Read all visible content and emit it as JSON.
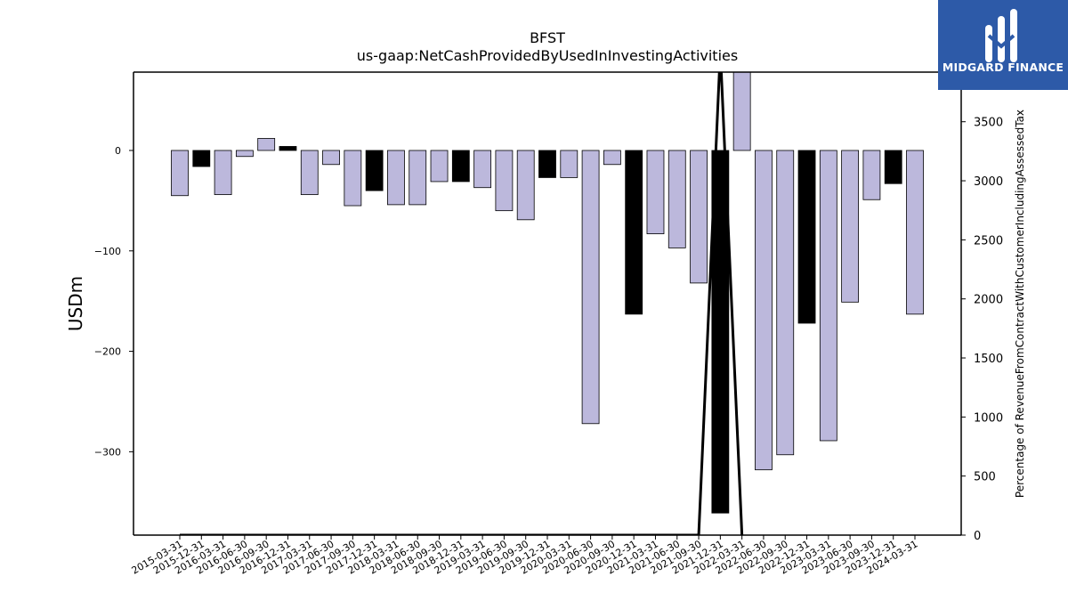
{
  "brand": {
    "name": "MIDGARD FINANCE",
    "color": "#2d5aa8"
  },
  "chart_data": {
    "type": "bar",
    "title": "BFST",
    "subtitle": "us-gaap:NetCashProvidedByUsedInInvestingActivities",
    "ylabel": "USDm",
    "y2label": "Percentage of RevenueFromContractWithCustomerIncludingAssessedTax",
    "ylim": [
      -383,
      78
    ],
    "y2lim": [
      0,
      3920
    ],
    "yticks": [
      0,
      -100,
      -200,
      -300
    ],
    "y2ticks": [
      0,
      500,
      1000,
      1500,
      2000,
      2500,
      3000,
      3500
    ],
    "ytick_labels": [
      "0",
      "−100",
      "−200",
      "−300"
    ],
    "y2tick_labels": [
      "0",
      "500",
      "1000",
      "1500",
      "2000",
      "2500",
      "3000",
      "3500"
    ],
    "grid": false,
    "colors": {
      "bar_light": "#bcb8dc",
      "bar_dark": "#000000",
      "edge": "#000000",
      "line": "#000000"
    },
    "categories": [
      "2015-03-31",
      "2015-12-31",
      "2016-03-31",
      "2016-06-30",
      "2016-09-30",
      "2016-12-31",
      "2017-03-31",
      "2017-06-30",
      "2017-09-30",
      "2017-12-31",
      "2018-03-31",
      "2018-06-30",
      "2018-09-30",
      "2018-12-31",
      "2019-03-31",
      "2019-06-30",
      "2019-09-30",
      "2019-12-31",
      "2020-03-31",
      "2020-06-30",
      "2020-09-30",
      "2020-12-31",
      "2021-03-31",
      "2021-06-30",
      "2021-09-30",
      "2021-12-31",
      "2022-03-31",
      "2022-06-30",
      "2022-09-30",
      "2022-12-31",
      "2023-03-31",
      "2023-06-30",
      "2023-09-30",
      "2023-12-31",
      "2024-03-31"
    ],
    "series": [
      {
        "type": "bar",
        "values": [
          -45,
          -16,
          -44,
          -6,
          12,
          4,
          -44,
          -14,
          -55,
          -40,
          -54,
          -54,
          -31,
          -31,
          -37,
          -60,
          -69,
          -27,
          -27,
          -272,
          -14,
          -163,
          -83,
          -97,
          -132,
          -361,
          78,
          -318,
          -303,
          -172,
          -289,
          -151,
          -49,
          -33,
          -163
        ],
        "highlight": [
          false,
          true,
          false,
          false,
          false,
          true,
          false,
          false,
          false,
          true,
          false,
          false,
          false,
          true,
          false,
          false,
          false,
          true,
          false,
          false,
          false,
          true,
          false,
          false,
          false,
          true,
          false,
          false,
          false,
          true,
          false,
          false,
          false,
          true,
          false
        ]
      },
      {
        "type": "line",
        "x": [
          "2015-03-31",
          "2015-12-31",
          "2016-03-31",
          "2016-06-30",
          "2016-09-30",
          "2016-12-31",
          "2021-09-30",
          "2021-12-31",
          "2022-03-31"
        ],
        "values": [
          0,
          0,
          0,
          0,
          0,
          0,
          0,
          4100,
          0
        ]
      }
    ]
  }
}
